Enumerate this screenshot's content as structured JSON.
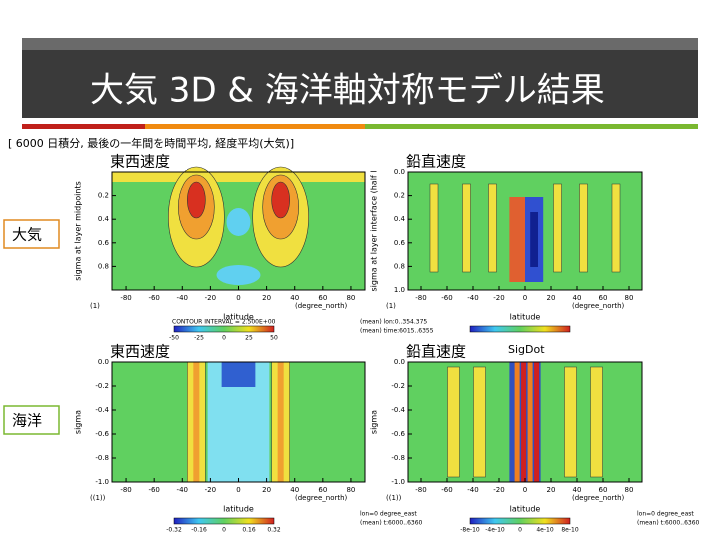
{
  "header": {
    "title": "大気 3D & 海洋軸対称モデル結果",
    "subtitle": "[ 6000  日積分, 最後の一年間を時間平均, 経度平均(大気)]"
  },
  "side_labels": [
    "大気",
    "海洋"
  ],
  "panels": [
    {
      "title": "東西速度",
      "ylabel": "sigma at layer midpoints",
      "yticks": [
        "0.2",
        "0.4",
        "0.6",
        "0.8"
      ],
      "xticks": [
        "-80",
        "-60",
        "-40",
        "-20",
        "0",
        "20",
        "40",
        "60",
        "80"
      ],
      "xlabel": "latitude",
      "xunit": "(degree_north)",
      "corner": "(1)",
      "note": "CONTOUR INTERVAL = 2.500E+00",
      "colorbar": [
        "-50",
        "-25",
        "0",
        "25",
        "50"
      ],
      "info": [
        "(mean) lon:0..354.375",
        "(mean) time:6015..6355"
      ]
    },
    {
      "title": "鉛直速度",
      "ylabel": "sigma at layer interface (half l",
      "yticks": [
        "0.0",
        "0.2",
        "0.4",
        "0.6",
        "0.8",
        "1.0"
      ],
      "xticks": [
        "-80",
        "-60",
        "-40",
        "-20",
        "0",
        "20",
        "40",
        "60",
        "80"
      ],
      "xlabel": "latitude",
      "xunit": "(degree_north)",
      "corner": "(1)"
    },
    {
      "title": "東西速度",
      "ylabel": "sigma",
      "yticks": [
        "0.0",
        "-0.2",
        "-0.4",
        "-0.6",
        "-0.8",
        "-1.0"
      ],
      "xticks": [
        "-80",
        "-60",
        "-40",
        "-20",
        "0",
        "20",
        "40",
        "60",
        "80"
      ],
      "xlabel": "latitude",
      "xunit": "(degree_north)",
      "corner": "((1))",
      "colorbar": [
        "-0.32",
        "-0.16",
        "0",
        "0.16",
        "0.32"
      ],
      "info": [
        "lon=0 degree_east",
        "(mean) t:6000..6360"
      ]
    },
    {
      "title": "鉛直速度",
      "subtitle": "SigDot",
      "ylabel": "sigma",
      "yticks": [
        "0.0",
        "-0.2",
        "-0.4",
        "-0.6",
        "-0.8",
        "-1.0"
      ],
      "xticks": [
        "-80",
        "-60",
        "-40",
        "-20",
        "0",
        "20",
        "40",
        "60",
        "80"
      ],
      "xlabel": "latitude",
      "xunit": "(degree_north)",
      "corner": "((1))",
      "colorbar": [
        "-8e-10",
        "-4e-10",
        "0",
        "4e-10",
        "8e-10"
      ],
      "info": [
        "lon=0 degree_east",
        "(mean) t:6000..6360"
      ]
    }
  ]
}
